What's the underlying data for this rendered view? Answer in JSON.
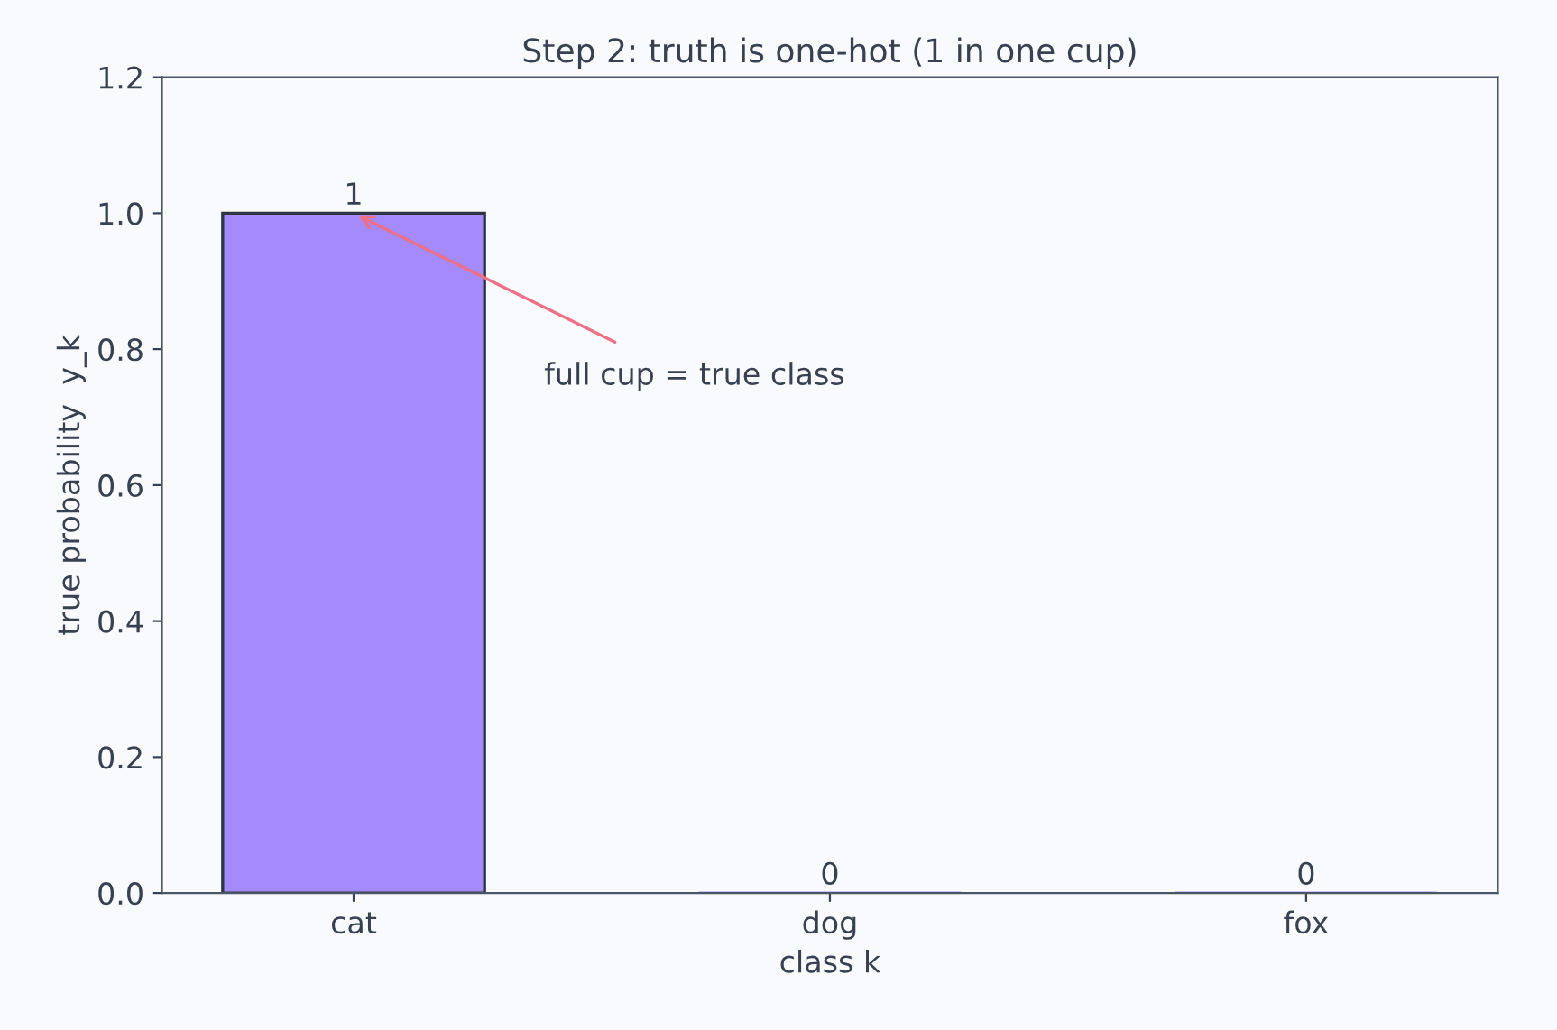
{
  "chart_data": {
    "type": "bar",
    "title": "Step 2: truth is one-hot (1 in one cup)",
    "xlabel": "class k",
    "ylabel": "true probability  y_k",
    "categories": [
      "cat",
      "dog",
      "fox"
    ],
    "values": [
      1,
      0,
      0
    ],
    "color": "#a48afa",
    "ylim": [
      0,
      1.2
    ],
    "yticks": [
      {
        "value": 0,
        "label": "0.0"
      },
      0.2,
      0.4,
      0.6,
      0.8,
      {
        "value": 1,
        "label": "1.0"
      },
      1.2
    ],
    "data_labels": true,
    "grid": false,
    "legend": false,
    "annotations": [
      {
        "text": "full cup = true class",
        "x": "cat",
        "y": 1
      }
    ]
  }
}
